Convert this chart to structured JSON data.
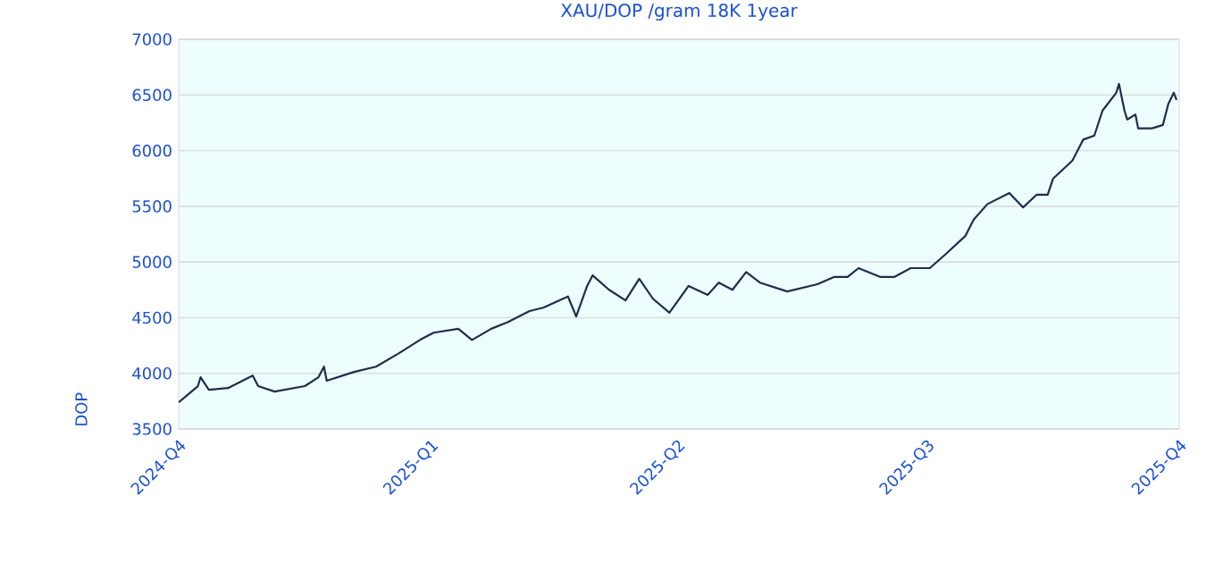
{
  "chart_data": {
    "type": "line",
    "title": "XAU/DOP /gram 18K 1year",
    "ylabel": "DOP",
    "xlim": [
      "2024-10-01",
      "2025-10-01"
    ],
    "xticks": [
      {
        "value": "2024-10-01",
        "label": "2024-Q4"
      },
      {
        "value": "2025-01-01",
        "label": "2025-Q1"
      },
      {
        "value": "2025-04-01",
        "label": "2025-Q2"
      },
      {
        "value": "2025-07-01",
        "label": "2025-Q3"
      },
      {
        "value": "2025-10-01",
        "label": "2025-Q4"
      }
    ],
    "ylim": [
      3500,
      7000
    ],
    "yticks": [
      3500,
      4000,
      4500,
      5000,
      5500,
      6000,
      6500,
      7000
    ],
    "grid": "y",
    "series": [
      {
        "color": "#1c2e4a",
        "x": [
          "2024-10-01",
          "2024-10-08",
          "2024-10-09",
          "2024-10-12",
          "2024-10-19",
          "2024-10-28",
          "2024-10-30",
          "2024-11-05",
          "2024-11-16",
          "2024-11-21",
          "2024-11-23",
          "2024-11-24",
          "2024-12-04",
          "2024-12-12",
          "2024-12-20",
          "2024-12-28",
          "2025-01-02",
          "2025-01-11",
          "2025-01-16",
          "2025-01-23",
          "2025-01-29",
          "2025-02-06",
          "2025-02-11",
          "2025-02-20",
          "2025-02-23",
          "2025-02-27",
          "2025-03-01",
          "2025-03-07",
          "2025-03-13",
          "2025-03-18",
          "2025-03-23",
          "2025-03-29",
          "2025-04-05",
          "2025-04-12",
          "2025-04-16",
          "2025-04-21",
          "2025-04-26",
          "2025-05-01",
          "2025-05-11",
          "2025-05-22",
          "2025-05-28",
          "2025-06-02",
          "2025-06-06",
          "2025-06-14",
          "2025-06-19",
          "2025-06-25",
          "2025-07-02",
          "2025-07-08",
          "2025-07-15",
          "2025-07-18",
          "2025-07-23",
          "2025-07-31",
          "2025-08-05",
          "2025-08-10",
          "2025-08-14",
          "2025-08-16",
          "2025-08-23",
          "2025-08-27",
          "2025-08-31",
          "2025-09-03",
          "2025-09-08",
          "2025-09-09",
          "2025-09-11",
          "2025-09-12",
          "2025-09-15",
          "2025-09-16",
          "2025-09-21",
          "2025-09-25",
          "2025-09-27",
          "2025-09-29",
          "2025-09-30"
        ],
        "values": [
          3740,
          3885,
          3965,
          3852,
          3868,
          3980,
          3885,
          3836,
          3885,
          3965,
          4060,
          3933,
          4013,
          4060,
          4175,
          4300,
          4365,
          4400,
          4300,
          4400,
          4460,
          4560,
          4590,
          4690,
          4510,
          4785,
          4880,
          4750,
          4655,
          4850,
          4670,
          4545,
          4785,
          4705,
          4815,
          4750,
          4910,
          4815,
          4735,
          4800,
          4865,
          4865,
          4945,
          4865,
          4865,
          4945,
          4945,
          5075,
          5235,
          5380,
          5520,
          5620,
          5490,
          5605,
          5605,
          5750,
          5910,
          6100,
          6135,
          6360,
          6520,
          6600,
          6360,
          6280,
          6325,
          6200,
          6200,
          6230,
          6420,
          6520,
          6455
        ]
      }
    ]
  }
}
